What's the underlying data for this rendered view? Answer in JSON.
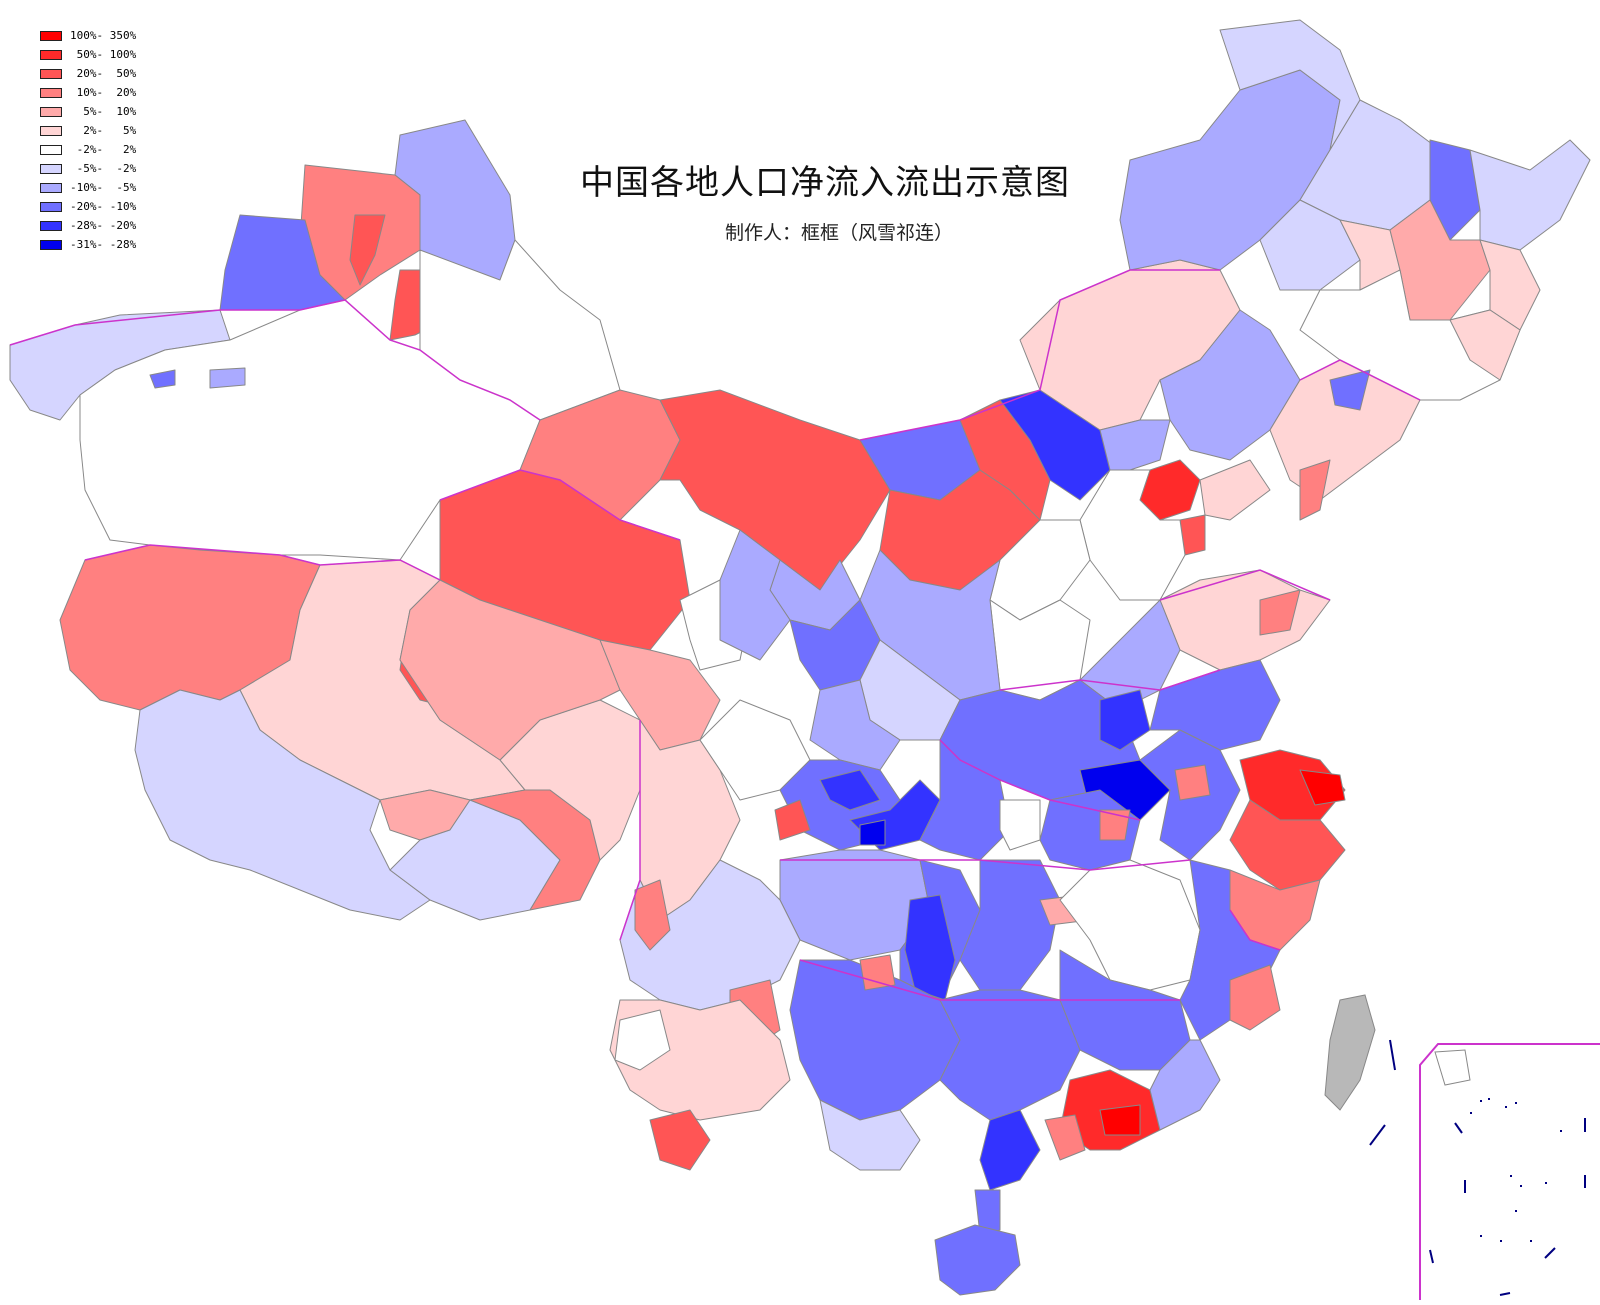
{
  "map": {
    "title": "中国各地人口净流入流出示意图",
    "subtitle": "制作人：框框（风雪祁连）"
  },
  "legend": {
    "items": [
      {
        "label": "100%- 350%",
        "color": "#ff0000"
      },
      {
        "label": " 50%- 100%",
        "color": "#ff2a2a"
      },
      {
        "label": " 20%-  50%",
        "color": "#ff5555"
      },
      {
        "label": " 10%-  20%",
        "color": "#ff8080"
      },
      {
        "label": "  5%-  10%",
        "color": "#ffaaaa"
      },
      {
        "label": "  2%-   5%",
        "color": "#ffd5d5"
      },
      {
        "label": " -2%-   2%",
        "color": "#ffffff"
      },
      {
        "label": " -5%-  -2%",
        "color": "#d5d5ff"
      },
      {
        "label": "-10%-  -5%",
        "color": "#aaaaff"
      },
      {
        "label": "-20%- -10%",
        "color": "#7070ff"
      },
      {
        "label": "-28%- -20%",
        "color": "#3333ff"
      },
      {
        "label": "-31%- -28%",
        "color": "#0000ee"
      }
    ]
  },
  "colors": {
    "province_border": "#cc33cc",
    "region_border": "#888888",
    "taiwan": "#b8b8b8",
    "islands": "#000080"
  }
}
